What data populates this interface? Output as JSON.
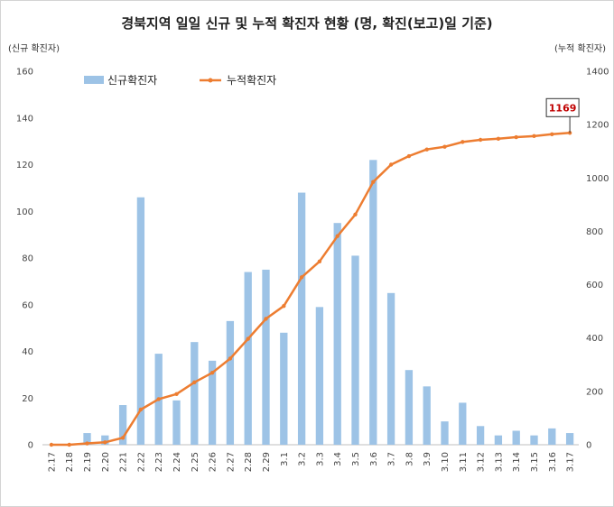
{
  "chart_data": {
    "type": "bar+line",
    "title": "경북지역 일일 신규 및 누적 확진자 현황 (명, 확진(보고)일 기준)",
    "ylabel_left": "(신규 확진자)",
    "ylabel_right": "(누적 확진자)",
    "ylim_left": [
      0,
      160
    ],
    "ylim_right": [
      0,
      1400
    ],
    "yticks_left": [
      "0",
      "20",
      "40",
      "60",
      "80",
      "100",
      "120",
      "140",
      "160"
    ],
    "yticks_right": [
      "0",
      "200",
      "400",
      "600",
      "800",
      "1000",
      "1200",
      "1400"
    ],
    "grid": false,
    "legend_placement": "top-left",
    "categories": [
      "2.17",
      "2.18",
      "2.19",
      "2.20",
      "2.21",
      "2.22",
      "2.23",
      "2.24",
      "2.25",
      "2.26",
      "2.27",
      "2.28",
      "2.29",
      "3.1",
      "3.2",
      "3.3",
      "3.4",
      "3.5",
      "3.6",
      "3.7",
      "3.8",
      "3.9",
      "3.10",
      "3.11",
      "3.12",
      "3.13",
      "3.14",
      "3.15",
      "3.16",
      "3.17"
    ],
    "series": [
      {
        "name": "신규확진자",
        "type": "bar",
        "axis": "left",
        "color": "#9dc3e6",
        "values": [
          0,
          0,
          5,
          4,
          17,
          106,
          39,
          19,
          44,
          36,
          53,
          74,
          75,
          48,
          108,
          59,
          95,
          81,
          122,
          65,
          32,
          25,
          10,
          18,
          8,
          4,
          6,
          4,
          7,
          5
        ]
      },
      {
        "name": "누적확진자",
        "type": "line",
        "axis": "right",
        "color": "#ed7d31",
        "values": [
          0,
          0,
          5,
          9,
          26,
          132,
          171,
          190,
          234,
          270,
          323,
          397,
          472,
          520,
          628,
          687,
          782,
          863,
          985,
          1050,
          1082,
          1107,
          1117,
          1135,
          1143,
          1147,
          1153,
          1157,
          1164,
          1169
        ]
      }
    ],
    "annotation": {
      "text": "1169",
      "target_index": 29
    }
  }
}
